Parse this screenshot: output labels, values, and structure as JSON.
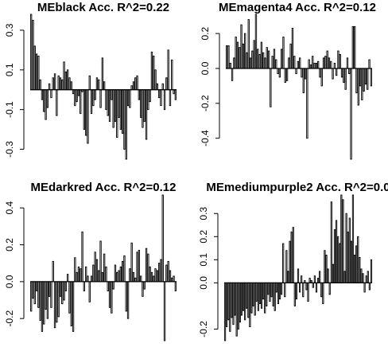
{
  "chart_data": [
    {
      "type": "bar",
      "title": "MEblack Acc. R^2=0.22",
      "xlabel": "",
      "ylabel": "",
      "ylim": [
        -0.35,
        0.38
      ],
      "yticks": [
        -0.3,
        -0.1,
        0.1,
        0.3
      ],
      "ytick_labels": [
        "-0.3",
        "-0.1",
        "0.1",
        "0.3"
      ],
      "values": [
        0.38,
        0.35,
        0.22,
        0.18,
        0.17,
        0.05,
        -0.05,
        -0.11,
        -0.15,
        -0.09,
        0.03,
        -0.04,
        0.06,
        0.08,
        -0.13,
        0.07,
        0.06,
        0.05,
        0.14,
        0.09,
        0.1,
        0.06,
        0.04,
        -0.02,
        -0.08,
        -0.06,
        -0.03,
        -0.12,
        -0.01,
        -0.2,
        -0.23,
        -0.27,
        0.07,
        -0.12,
        -0.08,
        -0.05,
        0.06,
        0.05,
        -0.09,
        0.16,
        0.04,
        -0.1,
        -0.13,
        -0.16,
        -0.05,
        -0.19,
        -0.16,
        -0.24,
        -0.14,
        -0.2,
        -0.22,
        -0.3,
        -0.35,
        -0.08,
        -0.09,
        0.02,
        0.04,
        0.06,
        0.07,
        -0.05,
        -0.14,
        -0.19,
        -0.16,
        -0.25,
        -0.1,
        -0.06,
        0.19,
        0.17,
        0.1,
        0.03,
        -0.04,
        -0.08,
        0.03,
        -0.1,
        0.06,
        0.2,
        -0.08,
        0.15,
        -0.02,
        -0.05
      ]
    },
    {
      "type": "bar",
      "title": "MEmagenta4 Acc. R^2=0.12",
      "xlabel": "",
      "ylabel": "",
      "ylim": [
        -0.52,
        0.31
      ],
      "yticks": [
        -0.4,
        -0.2,
        0.0,
        0.2
      ],
      "ytick_labels": [
        "-0.4",
        "-0.2",
        "0.0",
        "0.2"
      ],
      "values": [
        0.13,
        0.13,
        0.03,
        -0.07,
        0.06,
        0.18,
        0.15,
        0.12,
        0.25,
        0.14,
        0.2,
        0.09,
        0.28,
        0.06,
        0.1,
        0.16,
        0.31,
        0.11,
        0.08,
        0.15,
        0.09,
        0.06,
        0.12,
        0.1,
        -0.22,
        0.07,
        0.11,
        0.05,
        -0.03,
        -0.05,
        0.11,
        0.18,
        -0.08,
        -0.07,
        0.06,
        0.14,
        0.23,
        0.07,
        -0.03,
        0.04,
        0.06,
        -0.05,
        -0.14,
        -0.06,
        -0.4,
        0.05,
        0.02,
        0.07,
        0.03,
        0.03,
        0.04,
        -0.05,
        -0.1,
        0.06,
        0.07,
        0.1,
        0.06,
        0.04,
        -0.06,
        0.03,
        -0.04,
        0.1,
        0.08,
        -0.05,
        -0.08,
        -0.12,
        0.06,
        -0.03,
        -0.52,
        0.24,
        0.24,
        -0.14,
        -0.21,
        -0.1,
        -0.18,
        -0.13,
        -0.09,
        -0.12,
        0.05,
        -0.1
      ]
    },
    {
      "type": "bar",
      "title": "MEdarkred Acc. R^2=0.12",
      "xlabel": "",
      "ylabel": "",
      "ylim": [
        -0.32,
        0.47
      ],
      "yticks": [
        -0.2,
        0.0,
        0.2,
        0.4
      ],
      "ytick_labels": [
        "-0.2",
        "0.0",
        "0.2",
        "0.4"
      ],
      "values": [
        -0.16,
        -0.09,
        -0.12,
        -0.05,
        -0.14,
        -0.21,
        -0.27,
        -0.23,
        -0.15,
        -0.2,
        -0.08,
        -0.14,
        0.11,
        -0.25,
        -0.22,
        -0.19,
        -0.08,
        -0.12,
        -0.1,
        -0.05,
        0.04,
        -0.17,
        -0.24,
        -0.27,
        0.13,
        0.05,
        0.08,
        0.07,
        0.27,
        -0.05,
        0.08,
        0.03,
        -0.11,
        0.03,
        0.09,
        0.16,
        0.12,
        0.06,
        0.22,
        0.05,
        0.15,
        0.08,
        -0.05,
        -0.14,
        -0.17,
        -0.04,
        0.09,
        0.05,
        0.06,
        0.08,
        0.11,
        0.14,
        -0.16,
        -0.2,
        0.07,
        0.21,
        0.05,
        0.02,
        0.16,
        0.17,
        0.03,
        -0.08,
        -0.04,
        0.18,
        0.15,
        0.08,
        0.05,
        0.03,
        0.07,
        0.06,
        0.1,
        0.12,
        0.47,
        -0.32,
        0.09,
        0.11,
        0.06,
        0.02,
        0.03,
        -0.05
      ]
    },
    {
      "type": "bar",
      "title": "MEmediumpurple2 Acc. R^2=0.0",
      "xlabel": "",
      "ylabel": "",
      "ylim": [
        -0.25,
        0.38
      ],
      "yticks": [
        -0.2,
        0.0,
        0.1,
        0.2,
        0.3
      ],
      "ytick_labels": [
        "-0.2",
        "0.0",
        "0.1",
        "0.2",
        "0.3"
      ],
      "values": [
        -0.25,
        -0.19,
        -0.16,
        -0.21,
        -0.15,
        -0.18,
        -0.14,
        -0.23,
        -0.2,
        -0.17,
        -0.14,
        -0.12,
        -0.16,
        -0.11,
        -0.15,
        -0.19,
        -0.13,
        -0.1,
        -0.14,
        -0.08,
        -0.12,
        -0.09,
        -0.11,
        -0.07,
        -0.13,
        -0.1,
        -0.05,
        -0.08,
        -0.06,
        -0.1,
        -0.12,
        -0.04,
        -0.09,
        -0.07,
        -0.05,
        0.17,
        -0.06,
        0.14,
        0.05,
        0.18,
        0.22,
        0.24,
        -0.1,
        -0.07,
        0.06,
        -0.04,
        0.03,
        -0.06,
        0.01,
        -0.03,
        -0.08,
        0.02,
        0.01,
        -0.02,
        0.03,
        -0.04,
        0.02,
        0.05,
        -0.06,
        -0.09,
        0.14,
        0.12,
        0.06,
        -0.05,
        0.35,
        0.08,
        0.23,
        0.27,
        0.2,
        0.17,
        0.38,
        0.36,
        0.05,
        0.3,
        0.22,
        0.28,
        0.18,
        0.38,
        0.12,
        0.16,
        0.2,
        0.11,
        0.06,
        0.04,
        -0.04,
        0.03,
        0.05,
        -0.03,
        0.1
      ]
    }
  ]
}
